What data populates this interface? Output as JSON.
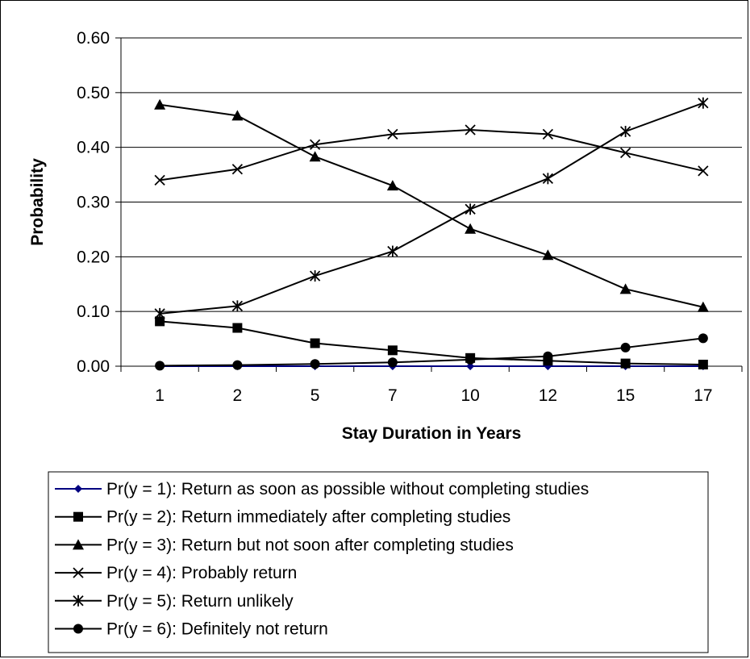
{
  "chart_data": {
    "type": "line",
    "title": "",
    "xlabel": "Stay Duration in Years",
    "ylabel": "Probability",
    "categories": [
      "1",
      "2",
      "5",
      "7",
      "10",
      "12",
      "15",
      "17"
    ],
    "ylim": [
      0,
      0.6
    ],
    "yticks": [
      "0.00",
      "0.10",
      "0.20",
      "0.30",
      "0.40",
      "0.50",
      "0.60"
    ],
    "grid": true,
    "legend_position": "bottom",
    "series": [
      {
        "name": "Pr(y = 1): Return as soon as possible without completing studies",
        "marker": "diamond",
        "color": "#000080",
        "values": [
          0.0,
          0.0,
          0.0,
          0.0,
          0.0,
          0.0,
          0.0,
          0.0
        ]
      },
      {
        "name": "Pr(y = 2): Return immediately after completing studies",
        "marker": "square",
        "color": "#000000",
        "values": [
          0.082,
          0.07,
          0.042,
          0.029,
          0.015,
          0.01,
          0.005,
          0.003
        ]
      },
      {
        "name": "Pr(y = 3): Return but not soon after completing studies",
        "marker": "triangle",
        "color": "#000000",
        "values": [
          0.478,
          0.458,
          0.383,
          0.33,
          0.251,
          0.203,
          0.141,
          0.108
        ]
      },
      {
        "name": "Pr(y = 4): Probably return",
        "marker": "x",
        "color": "#000000",
        "values": [
          0.34,
          0.36,
          0.405,
          0.424,
          0.432,
          0.424,
          0.39,
          0.357
        ]
      },
      {
        "name": "Pr(y = 5): Return unlikely",
        "marker": "star",
        "color": "#000000",
        "values": [
          0.096,
          0.11,
          0.165,
          0.21,
          0.287,
          0.343,
          0.429,
          0.481
        ]
      },
      {
        "name": "Pr(y = 6): Definitely not return",
        "marker": "circle",
        "color": "#000000",
        "values": [
          0.001,
          0.002,
          0.004,
          0.007,
          0.012,
          0.018,
          0.034,
          0.051
        ]
      }
    ]
  }
}
